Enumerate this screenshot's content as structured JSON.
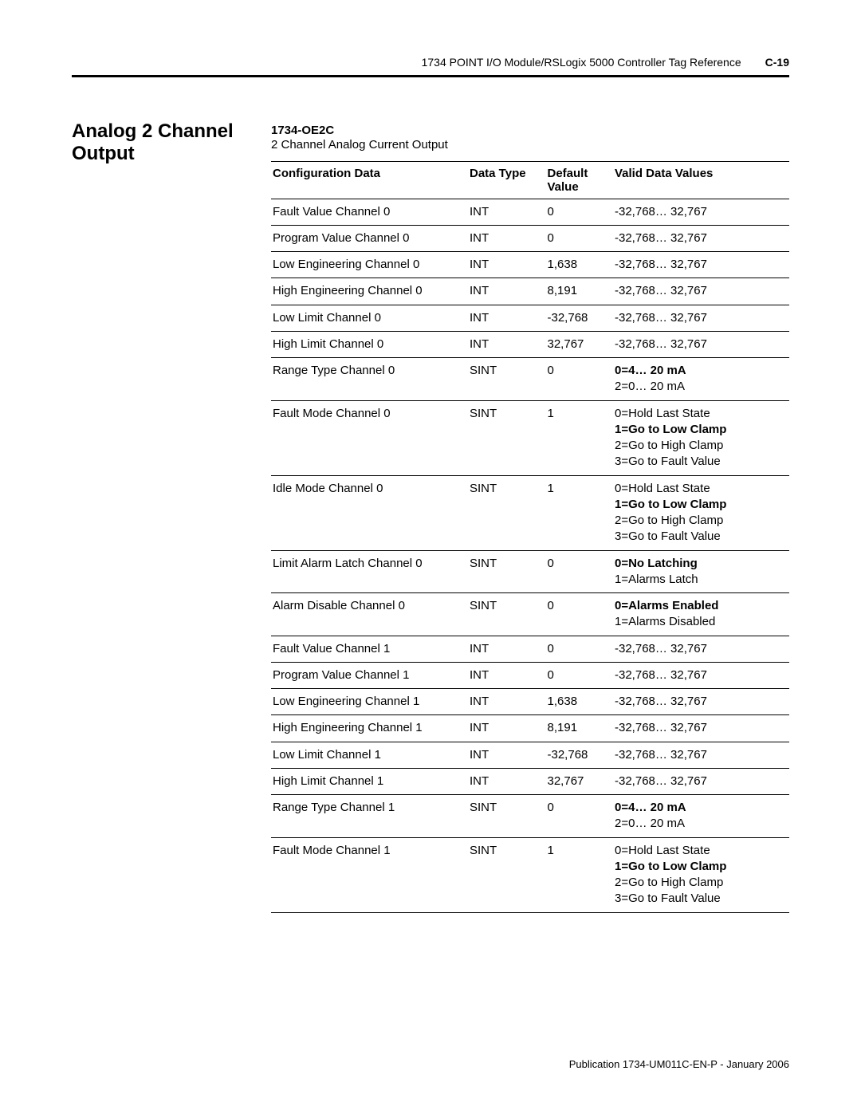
{
  "header": {
    "doc_title": "1734 POINT I/O Module/RSLogix 5000 Controller Tag Reference",
    "page_number": "C-19"
  },
  "section": {
    "title": "Analog 2 Channel Output",
    "module_name": "1734-OE2C",
    "module_desc": "2 Channel Analog Current Output"
  },
  "table": {
    "headers": {
      "config": "Configuration Data",
      "type": "Data Type",
      "default": "Default Value",
      "valid": "Valid Data Values"
    },
    "rows": [
      {
        "config": "Fault Value Channel 0",
        "type": "INT",
        "default": "0",
        "valid": [
          {
            "t": "-32,768… 32,767",
            "b": false
          }
        ]
      },
      {
        "config": "Program Value Channel 0",
        "type": "INT",
        "default": "0",
        "valid": [
          {
            "t": "-32,768… 32,767",
            "b": false
          }
        ]
      },
      {
        "config": "Low Engineering Channel 0",
        "type": "INT",
        "default": "1,638",
        "valid": [
          {
            "t": "-32,768… 32,767",
            "b": false
          }
        ]
      },
      {
        "config": "High Engineering Channel 0",
        "type": "INT",
        "default": "8,191",
        "valid": [
          {
            "t": "-32,768… 32,767",
            "b": false
          }
        ]
      },
      {
        "config": "Low Limit Channel 0",
        "type": "INT",
        "default": "-32,768",
        "valid": [
          {
            "t": "-32,768… 32,767",
            "b": false
          }
        ]
      },
      {
        "config": "High Limit Channel 0",
        "type": "INT",
        "default": "32,767",
        "valid": [
          {
            "t": "-32,768… 32,767",
            "b": false
          }
        ]
      },
      {
        "config": "Range Type Channel 0",
        "type": "SINT",
        "default": "0",
        "valid": [
          {
            "t": "0=4… 20 mA",
            "b": true
          },
          {
            "t": "2=0… 20 mA",
            "b": false
          }
        ]
      },
      {
        "config": "Fault Mode Channel 0",
        "type": "SINT",
        "default": "1",
        "valid": [
          {
            "t": "0=Hold Last State",
            "b": false
          },
          {
            "t": "1=Go to Low Clamp",
            "b": true
          },
          {
            "t": "2=Go to High Clamp",
            "b": false
          },
          {
            "t": "3=Go to Fault Value",
            "b": false
          }
        ]
      },
      {
        "config": "Idle Mode Channel 0",
        "type": "SINT",
        "default": "1",
        "valid": [
          {
            "t": "0=Hold Last State",
            "b": false
          },
          {
            "t": "1=Go to Low Clamp",
            "b": true
          },
          {
            "t": "2=Go to High Clamp",
            "b": false
          },
          {
            "t": "3=Go to Fault Value",
            "b": false
          }
        ]
      },
      {
        "config": "Limit Alarm Latch Channel 0",
        "type": "SINT",
        "default": "0",
        "valid": [
          {
            "t": "0=No Latching",
            "b": true
          },
          {
            "t": "1=Alarms Latch",
            "b": false
          }
        ]
      },
      {
        "config": "Alarm Disable Channel 0",
        "type": "SINT",
        "default": "0",
        "valid": [
          {
            "t": "0=Alarms Enabled",
            "b": true
          },
          {
            "t": "1=Alarms Disabled",
            "b": false
          }
        ]
      },
      {
        "config": "Fault Value Channel 1",
        "type": "INT",
        "default": "0",
        "valid": [
          {
            "t": "-32,768… 32,767",
            "b": false
          }
        ]
      },
      {
        "config": "Program Value Channel 1",
        "type": "INT",
        "default": "0",
        "valid": [
          {
            "t": "-32,768… 32,767",
            "b": false
          }
        ]
      },
      {
        "config": "Low Engineering Channel 1",
        "type": "INT",
        "default": "1,638",
        "valid": [
          {
            "t": "-32,768… 32,767",
            "b": false
          }
        ]
      },
      {
        "config": "High Engineering Channel 1",
        "type": "INT",
        "default": "8,191",
        "valid": [
          {
            "t": "-32,768… 32,767",
            "b": false
          }
        ]
      },
      {
        "config": "Low Limit Channel 1",
        "type": "INT",
        "default": "-32,768",
        "valid": [
          {
            "t": "-32,768… 32,767",
            "b": false
          }
        ]
      },
      {
        "config": "High Limit Channel 1",
        "type": "INT",
        "default": "32,767",
        "valid": [
          {
            "t": "-32,768… 32,767",
            "b": false
          }
        ]
      },
      {
        "config": "Range Type Channel 1",
        "type": "SINT",
        "default": "0",
        "valid": [
          {
            "t": "0=4… 20 mA",
            "b": true
          },
          {
            "t": "2=0… 20 mA",
            "b": false
          }
        ]
      },
      {
        "config": "Fault Mode Channel 1",
        "type": "SINT",
        "default": "1",
        "valid": [
          {
            "t": "0=Hold Last State",
            "b": false
          },
          {
            "t": "1=Go to Low Clamp",
            "b": true
          },
          {
            "t": "2=Go to High Clamp",
            "b": false
          },
          {
            "t": "3=Go to Fault Value",
            "b": false
          }
        ]
      }
    ]
  },
  "footer": {
    "text": "Publication 1734-UM011C-EN-P - January 2006"
  }
}
